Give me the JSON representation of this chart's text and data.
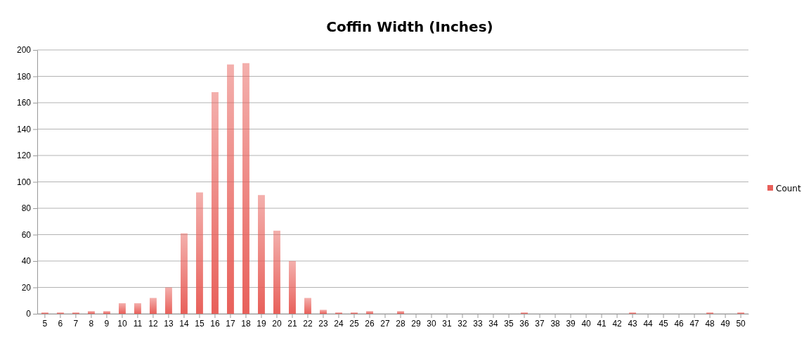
{
  "chart_data": {
    "type": "bar",
    "title": "Coffin Width (Inches)",
    "categories": [
      "5",
      "6",
      "7",
      "8",
      "9",
      "10",
      "11",
      "12",
      "13",
      "14",
      "15",
      "16",
      "17",
      "18",
      "19",
      "20",
      "21",
      "22",
      "23",
      "24",
      "25",
      "26",
      "27",
      "28",
      "29",
      "30",
      "31",
      "32",
      "33",
      "34",
      "35",
      "36",
      "37",
      "38",
      "39",
      "40",
      "41",
      "42",
      "43",
      "44",
      "45",
      "46",
      "47",
      "48",
      "49",
      "50"
    ],
    "series": [
      {
        "name": "Count",
        "color": "#e8605a",
        "values": [
          1,
          1,
          1,
          2,
          2,
          8,
          8,
          12,
          20,
          61,
          92,
          168,
          189,
          190,
          90,
          63,
          40,
          12,
          3,
          1,
          1,
          2,
          0,
          2,
          0,
          0,
          0,
          0,
          0,
          0,
          0,
          1,
          0,
          0,
          0,
          0,
          0,
          0,
          1,
          0,
          0,
          0,
          0,
          1,
          0,
          1
        ]
      }
    ],
    "ylim": [
      0,
      200
    ],
    "yticks": [
      0,
      20,
      40,
      60,
      80,
      100,
      120,
      140,
      160,
      180,
      200
    ],
    "grid": "y",
    "legend": "right"
  }
}
